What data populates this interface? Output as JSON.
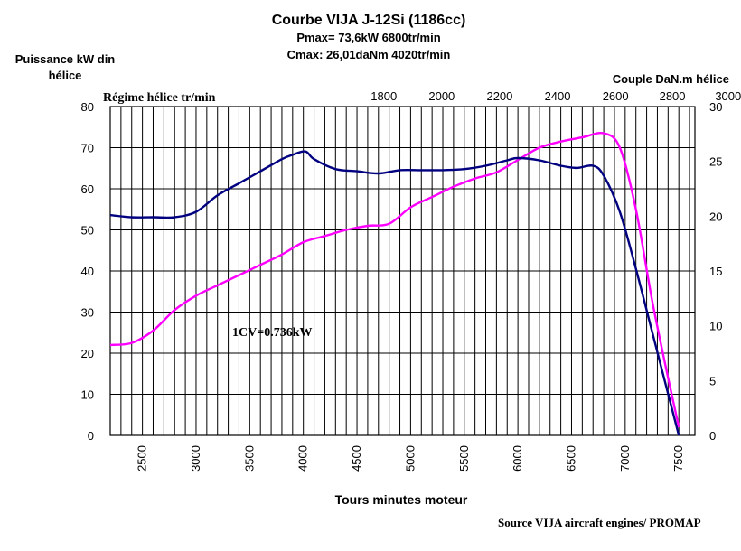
{
  "chart_data": {
    "type": "line",
    "title": "Courbe VIJA J-12Si (1186cc)",
    "subtitle_pmax": "Pmax= 73,6kW  6800tr/min",
    "subtitle_cmax": "Cmax: 26,01daNm  4020tr/min",
    "y_left_label_line1": "Puissance kW din",
    "y_left_label_line2": "hélice",
    "y_right_label": "Couple DaN.m hélice",
    "x_top_label": "Régime hélice tr/min",
    "xlabel": "Tours minutes moteur",
    "annotation": "1CV=0.736kW",
    "source": "Source VIJA aircraft engines/ PROMAP",
    "xlim": [
      2200,
      7650
    ],
    "y_left_lim": [
      0,
      80
    ],
    "y_right_lim": [
      0,
      30
    ],
    "x_ticks": [
      "2500",
      "3000",
      "3500",
      "4000",
      "4500",
      "5000",
      "5500",
      "6000",
      "6500",
      "7000",
      "7500"
    ],
    "x_tick_values": [
      2500,
      3000,
      3500,
      4000,
      4500,
      5000,
      5500,
      6000,
      6500,
      7000,
      7500
    ],
    "y_left_ticks": [
      "0",
      "10",
      "20",
      "30",
      "40",
      "50",
      "60",
      "70",
      "80"
    ],
    "y_left_tick_values": [
      0,
      10,
      20,
      30,
      40,
      50,
      60,
      70,
      80
    ],
    "y_right_ticks": [
      "0",
      "5",
      "10",
      "15",
      "20",
      "25",
      "30"
    ],
    "y_right_tick_values": [
      0,
      5,
      10,
      15,
      20,
      25,
      30
    ],
    "x_top_ticks": [
      "1800",
      "2000",
      "2200",
      "2400",
      "2600",
      "2800",
      "3000"
    ],
    "x_top_tick_engine_rpm": [
      4750,
      5290,
      5830,
      6370,
      6910,
      7440,
      7960
    ],
    "grid": true,
    "vertical_grid_step": 100,
    "series": [
      {
        "axis": "left",
        "color": "#ff00ff",
        "x": [
          2200,
          2400,
          2600,
          2800,
          3000,
          3200,
          3400,
          3600,
          3800,
          4000,
          4200,
          4400,
          4600,
          4800,
          5000,
          5200,
          5400,
          5600,
          5800,
          6000,
          6200,
          6400,
          6600,
          6800,
          6950,
          7100,
          7250,
          7400,
          7500
        ],
        "values": [
          22,
          22.5,
          25.5,
          30.5,
          34,
          36.5,
          39,
          41.5,
          44,
          47,
          48.5,
          50,
          51,
          51.5,
          55.5,
          58,
          60.5,
          62.5,
          64,
          67,
          70,
          71.5,
          72.5,
          73.5,
          70,
          55,
          33,
          14,
          2
        ]
      },
      {
        "axis": "right",
        "color": "#000080",
        "x": [
          2200,
          2400,
          2600,
          2800,
          3000,
          3200,
          3400,
          3600,
          3800,
          3900,
          4020,
          4100,
          4300,
          4500,
          4700,
          4900,
          5100,
          5300,
          5500,
          5700,
          5900,
          6000,
          6200,
          6400,
          6550,
          6700,
          6800,
          6950,
          7100,
          7250,
          7400,
          7500
        ],
        "values": [
          20.1,
          19.9,
          19.9,
          19.9,
          20.4,
          21.9,
          23.0,
          24.1,
          25.2,
          25.6,
          25.9,
          25.2,
          24.3,
          24.1,
          23.9,
          24.2,
          24.2,
          24.2,
          24.3,
          24.6,
          25.1,
          25.3,
          25.1,
          24.6,
          24.4,
          24.6,
          23.7,
          20.4,
          15.2,
          9.5,
          3.8,
          0
        ]
      }
    ]
  }
}
